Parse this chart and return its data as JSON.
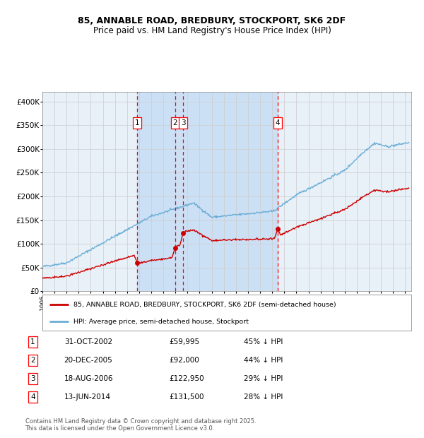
{
  "title_line1": "85, ANNABLE ROAD, BREDBURY, STOCKPORT, SK6 2DF",
  "title_line2": "Price paid vs. HM Land Registry's House Price Index (HPI)",
  "legend_line1": "85, ANNABLE ROAD, BREDBURY, STOCKPORT, SK6 2DF (semi-detached house)",
  "legend_line2": "HPI: Average price, semi-detached house, Stockport",
  "footer": "Contains HM Land Registry data © Crown copyright and database right 2025.\nThis data is licensed under the Open Government Licence v3.0.",
  "transactions": [
    {
      "id": 1,
      "date": "31-OCT-2002",
      "year": 2002.83,
      "price": 59995,
      "pct": "45% ↓ HPI"
    },
    {
      "id": 2,
      "date": "20-DEC-2005",
      "year": 2005.97,
      "price": 92000,
      "pct": "44% ↓ HPI"
    },
    {
      "id": 3,
      "date": "18-AUG-2006",
      "year": 2006.63,
      "price": 122950,
      "pct": "29% ↓ HPI"
    },
    {
      "id": 4,
      "date": "13-JUN-2014",
      "year": 2014.45,
      "price": 131500,
      "pct": "28% ↓ HPI"
    }
  ],
  "bg_fill_start": 2002.83,
  "bg_fill_end": 2014.45,
  "ylim": [
    0,
    420000
  ],
  "xlim_start": 1995,
  "xlim_end": 2025.5,
  "hpi_color": "#6baed6",
  "price_color": "#cc0000",
  "bg_color": "#cce0f5",
  "grid_color": "#cccccc",
  "plot_bg": "#e8f0f8"
}
